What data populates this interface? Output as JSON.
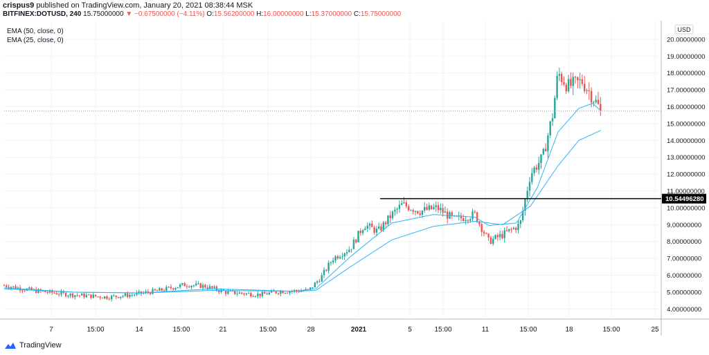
{
  "header": {
    "author": "crispus9",
    "published": "published on TradingView.com, January 20, 2021 08:38:44 MSK"
  },
  "symbol": {
    "name": "BITFINEX:DOTUSD, 240",
    "price": "15.75000000",
    "change": "−0.67500000 (−4.11%)",
    "open_label": "O:",
    "open": "15.56200000",
    "high_label": "H:",
    "high": "16.00000000",
    "low_label": "L:",
    "low": "15.37000000",
    "close_label": "C:",
    "close": "15.75000000"
  },
  "indicators": [
    {
      "label": "EMA (50, close, 0)"
    },
    {
      "label": "EMA (25, close, 0)"
    }
  ],
  "currency_badge": "USD",
  "level_label": "10.54496280",
  "footer": {
    "brand": "TradingView"
  },
  "colors": {
    "up": "#26a69a",
    "down": "#ef5350",
    "ema": "#29b6f6",
    "level": "#000000",
    "grid": "#f0f3fa",
    "axis_text": "#131722"
  },
  "chart_data": {
    "type": "candlestick",
    "ylim": [
      3.4,
      21.1
    ],
    "y_ticks": [
      "4.00000000",
      "5.00000000",
      "6.00000000",
      "7.00000000",
      "8.00000000",
      "9.00000000",
      "10.00000000",
      "11.00000000",
      "12.00000000",
      "13.00000000",
      "14.00000000",
      "15.00000000",
      "16.00000000",
      "17.00000000",
      "18.00000000",
      "19.00000000",
      "20.00000000",
      "21.00000000"
    ],
    "x_ticks": [
      "7",
      "15:00",
      "14",
      "15:00",
      "21",
      "15:00",
      "28",
      "2021",
      "5",
      "15:00",
      "11",
      "15:00",
      "18",
      "15:00",
      "25"
    ],
    "horizontal_level": 10.5449628,
    "last_price": 15.75,
    "price_path": [
      [
        0,
        5.4
      ],
      [
        40,
        5.1
      ],
      [
        95,
        4.85
      ],
      [
        150,
        4.7
      ],
      [
        185,
        4.85
      ],
      [
        225,
        5.1
      ],
      [
        262,
        5.45
      ],
      [
        290,
        5.35
      ],
      [
        320,
        5.0
      ],
      [
        370,
        4.85
      ],
      [
        400,
        5.05
      ],
      [
        440,
        5.1
      ],
      [
        458,
        5.9
      ],
      [
        475,
        7.0
      ],
      [
        500,
        7.6
      ],
      [
        520,
        9.0
      ],
      [
        540,
        8.6
      ],
      [
        560,
        9.6
      ],
      [
        575,
        10.2
      ],
      [
        600,
        9.8
      ],
      [
        625,
        10.0
      ],
      [
        650,
        9.3
      ],
      [
        680,
        9.6
      ],
      [
        700,
        8.0
      ],
      [
        720,
        8.4
      ],
      [
        745,
        9.0
      ],
      [
        760,
        12.0
      ],
      [
        778,
        13.0
      ],
      [
        792,
        15.5
      ],
      [
        800,
        18.0
      ],
      [
        815,
        17.2
      ],
      [
        835,
        17.5
      ],
      [
        850,
        16.6
      ],
      [
        862,
        15.75
      ]
    ],
    "ema_fast": [
      [
        0,
        5.25
      ],
      [
        100,
        5.0
      ],
      [
        200,
        4.95
      ],
      [
        300,
        5.2
      ],
      [
        420,
        5.05
      ],
      [
        450,
        5.2
      ],
      [
        500,
        7.1
      ],
      [
        560,
        9.1
      ],
      [
        620,
        9.6
      ],
      [
        680,
        9.45
      ],
      [
        700,
        8.95
      ],
      [
        740,
        9.1
      ],
      [
        770,
        11.2
      ],
      [
        800,
        14.5
      ],
      [
        830,
        15.9
      ],
      [
        850,
        16.2
      ],
      [
        862,
        15.75
      ]
    ],
    "ema_slow": [
      [
        0,
        5.2
      ],
      [
        100,
        5.0
      ],
      [
        200,
        4.95
      ],
      [
        300,
        5.1
      ],
      [
        420,
        5.05
      ],
      [
        450,
        5.1
      ],
      [
        500,
        6.5
      ],
      [
        560,
        8.1
      ],
      [
        620,
        8.9
      ],
      [
        680,
        9.2
      ],
      [
        720,
        9.0
      ],
      [
        760,
        10.1
      ],
      [
        800,
        12.5
      ],
      [
        830,
        14.0
      ],
      [
        862,
        14.6
      ]
    ]
  }
}
